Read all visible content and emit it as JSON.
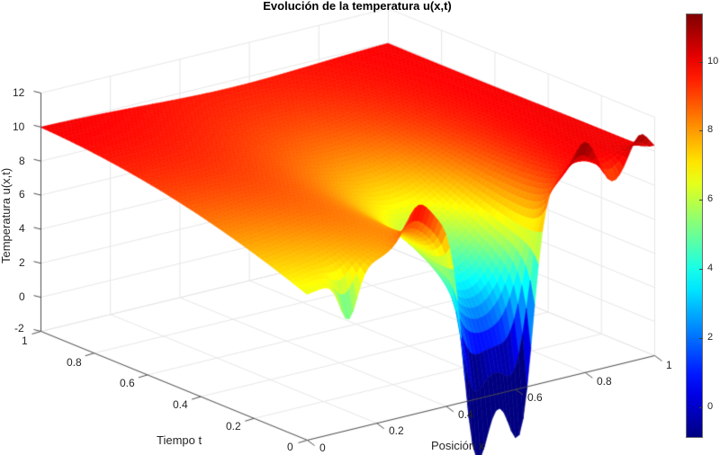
{
  "chart_data": {
    "type": "surface3d",
    "title": "Evolución de la temperatura u(x,t)",
    "xlabel": "Posición x",
    "ylabel": "Tiempo t",
    "zlabel": "Temperatura u(x,t)",
    "x_range": [
      0,
      1
    ],
    "t_range": [
      0,
      1
    ],
    "z_range": [
      -2,
      12
    ],
    "x_ticks": [
      "0",
      "0.2",
      "0.4",
      "0.6",
      "0.8",
      "1"
    ],
    "t_ticks": [
      "0",
      "0.2",
      "0.4",
      "0.6",
      "0.8",
      "1"
    ],
    "z_ticks": [
      "-2",
      "0",
      "2",
      "4",
      "6",
      "8",
      "10",
      "12"
    ],
    "grid": true,
    "colormap": "jet",
    "colorbar": {
      "range": [
        -0.9,
        11.4
      ],
      "ticks": [
        "0",
        "2",
        "4",
        "6",
        "8",
        "10"
      ]
    },
    "surface_description": {
      "plateau_value_at_t1": 10,
      "boundary_x0": [
        {
          "t": 0.08,
          "u": 7
        },
        {
          "t": 1,
          "u": 9.5
        }
      ],
      "boundary_x1": [
        {
          "t": 0,
          "u": 10
        },
        {
          "t": 1,
          "u": 10
        }
      ],
      "initial_profile_t0": [
        {
          "x": 0.1,
          "u": 7.0
        },
        {
          "x": 0.15,
          "u": 9.2
        },
        {
          "x": 0.25,
          "u": 9.5
        },
        {
          "x": 0.32,
          "u": 11.2
        },
        {
          "x": 0.4,
          "u": 6.0
        },
        {
          "x": 0.48,
          "u": -0.8
        },
        {
          "x": 0.55,
          "u": 0.4
        },
        {
          "x": 0.62,
          "u": -0.5
        },
        {
          "x": 0.7,
          "u": 4.0
        },
        {
          "x": 0.8,
          "u": 11.4
        },
        {
          "x": 0.88,
          "u": 9.0
        },
        {
          "x": 0.96,
          "u": 11.0
        },
        {
          "x": 1.0,
          "u": 10.0
        }
      ]
    }
  },
  "colors": {
    "axis": "#262626",
    "grid": "#e6e6e6",
    "background": "#ffffff"
  }
}
